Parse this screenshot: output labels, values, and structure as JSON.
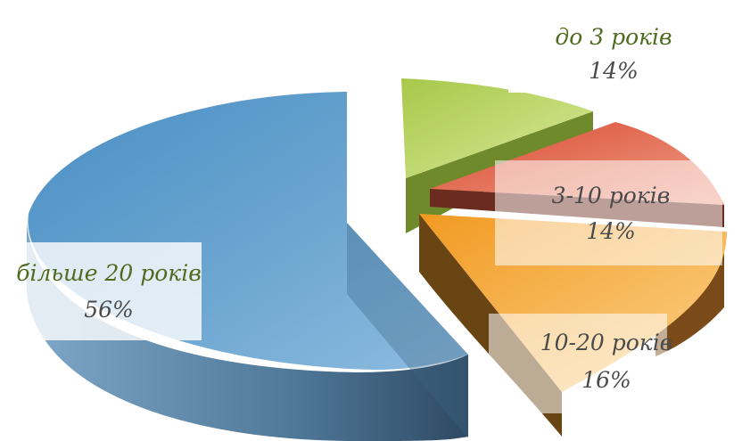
{
  "chart_data": {
    "type": "pie",
    "title": "",
    "slices": [
      {
        "label": "більше 20 років",
        "value": 56,
        "value_label": "56%",
        "color": "#5a9ac8"
      },
      {
        "label": "до 3 років",
        "value": 14,
        "value_label": "14%",
        "color": "#b7d05a"
      },
      {
        "label": "3-10 років",
        "value": 14,
        "value_label": "14%",
        "color": "#e0553a"
      },
      {
        "label": "10-20 років",
        "value": 16,
        "value_label": "16%",
        "color": "#f39a28"
      }
    ],
    "style": "3d-exploded",
    "legend": "none"
  }
}
